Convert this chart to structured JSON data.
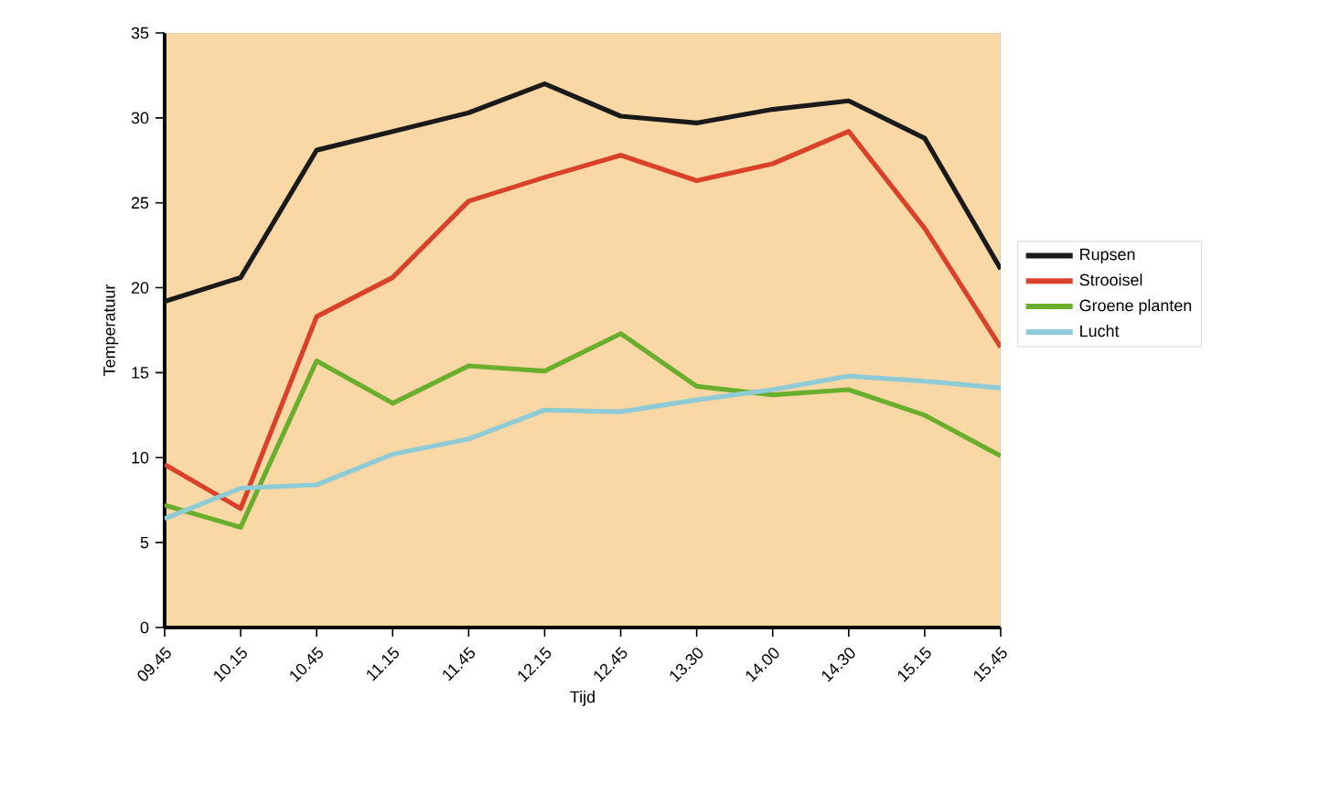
{
  "chart_data": {
    "type": "line",
    "xlabel": "Tijd",
    "ylabel": "Temperatuur",
    "categories": [
      "09.45",
      "10.15",
      "10.45",
      "11.15",
      "11.45",
      "12.15",
      "12.45",
      "13.30",
      "14.00",
      "14.30",
      "15.15",
      "15.45"
    ],
    "series": [
      {
        "name": "Rupsen",
        "color": "#1a1a1a",
        "values": [
          19.2,
          20.6,
          28.1,
          29.2,
          30.3,
          32.0,
          30.1,
          29.7,
          30.5,
          31.0,
          28.8,
          21.1
        ]
      },
      {
        "name": "Strooisel",
        "color": "#d9412a",
        "values": [
          9.6,
          7.0,
          18.3,
          20.6,
          25.1,
          26.5,
          27.8,
          26.3,
          27.3,
          29.2,
          23.5,
          16.5
        ]
      },
      {
        "name": "Groene planten",
        "color": "#6aae2e",
        "values": [
          7.2,
          5.9,
          15.7,
          13.2,
          15.4,
          15.1,
          17.3,
          14.2,
          13.7,
          14.0,
          12.5,
          10.1
        ]
      },
      {
        "name": "Lucht",
        "color": "#8ecbd6",
        "values": [
          6.4,
          8.2,
          8.4,
          10.2,
          11.1,
          12.8,
          12.7,
          13.4,
          14.0,
          14.8,
          14.5,
          14.1
        ]
      }
    ],
    "ylim": [
      0,
      35
    ],
    "yticks": [
      0,
      5,
      10,
      15,
      20,
      25,
      30,
      35
    ],
    "grid": false,
    "legend": "right",
    "marker": "none",
    "line_style": "solid"
  }
}
